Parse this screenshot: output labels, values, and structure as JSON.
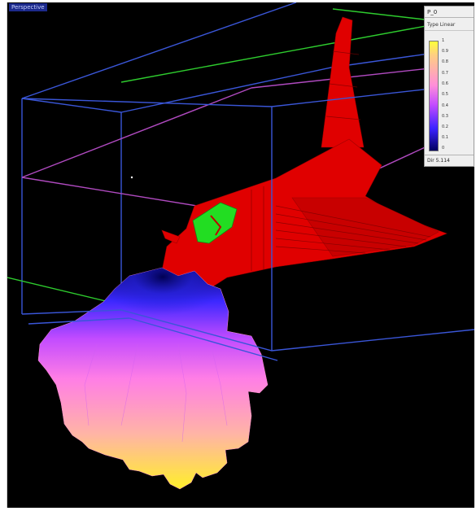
{
  "viewport": {
    "label": "Perspective"
  },
  "legend": {
    "title": "P_0",
    "type_label": "Type Linear",
    "ticks": [
      "1",
      "0.9",
      "0.8",
      "0.7",
      "0.6",
      "0.5",
      "0.4",
      "0.3",
      "0.2",
      "0.1",
      "0"
    ],
    "footer": "Dir 5.114",
    "colors": {
      "high": "#ffff3a",
      "mid": "#ff8fd9",
      "low": "#3a22ff",
      "min": "#000060"
    }
  },
  "scene": {
    "colors": {
      "background": "#000000",
      "orbiter": "#e00000",
      "cockpit": "#22dd22",
      "box": "#3a56d8",
      "axis_green": "#2ecc2e",
      "axis_purple": "#b04ac0"
    }
  }
}
